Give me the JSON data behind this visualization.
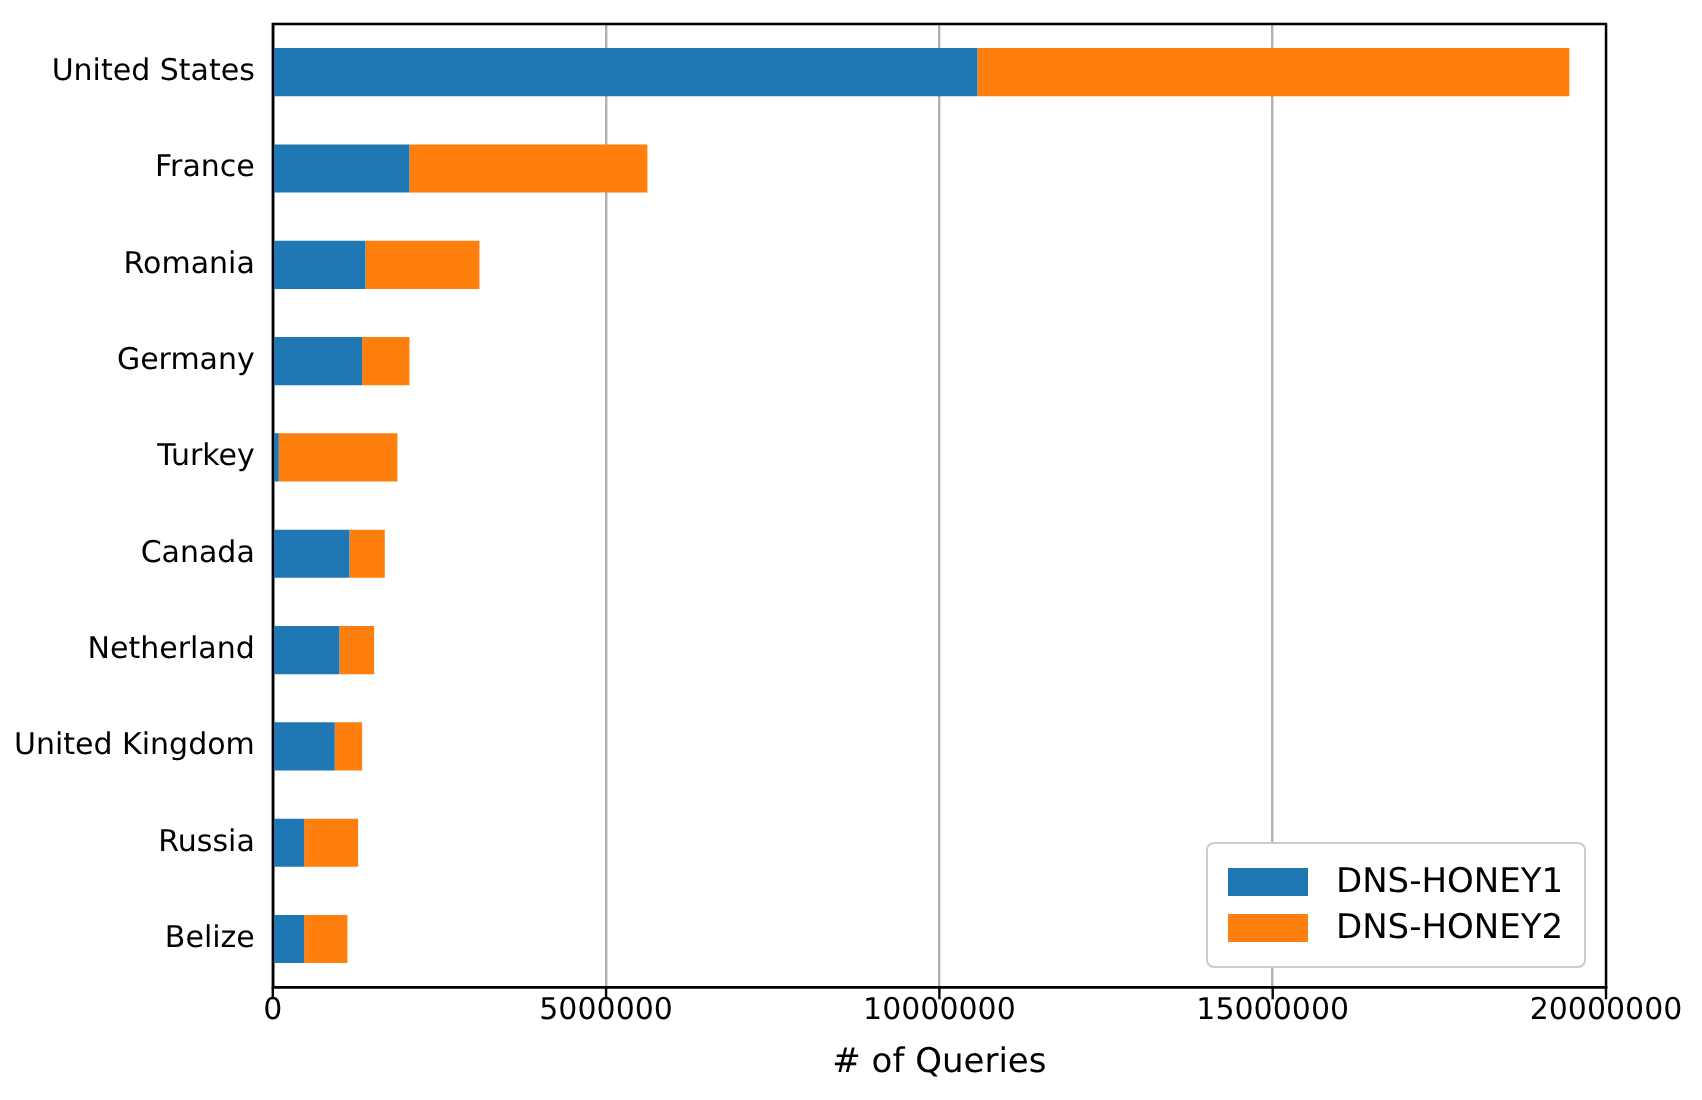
{
  "chart_data": {
    "type": "bar",
    "orientation": "horizontal",
    "stacked": true,
    "xlabel": "# of Queries",
    "categories": [
      "United States",
      "France",
      "Romania",
      "Germany",
      "Turkey",
      "Canada",
      "Netherland",
      "United Kingdom",
      "Russia",
      "Belize"
    ],
    "series": [
      {
        "name": "DNS-HONEY1",
        "color": "#1f77b4",
        "values": [
          10570000,
          2050000,
          1390000,
          1340000,
          90000,
          1150000,
          1000000,
          930000,
          470000,
          470000
        ]
      },
      {
        "name": "DNS-HONEY2",
        "color": "#ff7f0e",
        "values": [
          8880000,
          3570000,
          1710000,
          710000,
          1780000,
          530000,
          520000,
          410000,
          810000,
          650000
        ]
      }
    ],
    "xlim": [
      0,
      20000000
    ],
    "xticks": [
      0,
      5000000,
      10000000,
      15000000,
      20000000
    ],
    "grid": "x",
    "legend": "bottom right"
  }
}
